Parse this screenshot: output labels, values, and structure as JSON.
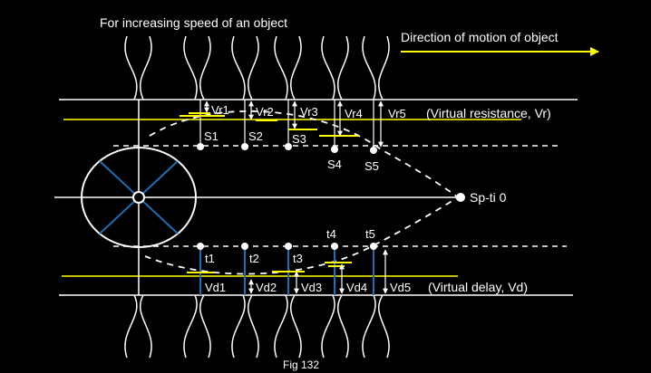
{
  "diagram": {
    "title": "For increasing speed of an object",
    "direction_label": "Direction of motion of object",
    "caption": "Fig 132",
    "apex_label": "Sp-ti 0",
    "upper": {
      "points": [
        "S1",
        "S2",
        "S3",
        "S4",
        "S5"
      ],
      "gaps": [
        "Vr1",
        "Vr2",
        "Vr3",
        "Vr4",
        "Vr5"
      ],
      "band_label": "(Virtual resistance, Vr)"
    },
    "lower": {
      "points": [
        "t1",
        "t2",
        "t3",
        "t4",
        "t5"
      ],
      "gaps": [
        "Vd1",
        "Vd2",
        "Vd3",
        "Vd4",
        "Vd5"
      ],
      "band_label": "(Virtual delay, Vd)"
    },
    "colors": {
      "background": "#000000",
      "lines": "#ffffff",
      "highlight": "#ffff00",
      "spokes": "#1f6fb5"
    }
  }
}
